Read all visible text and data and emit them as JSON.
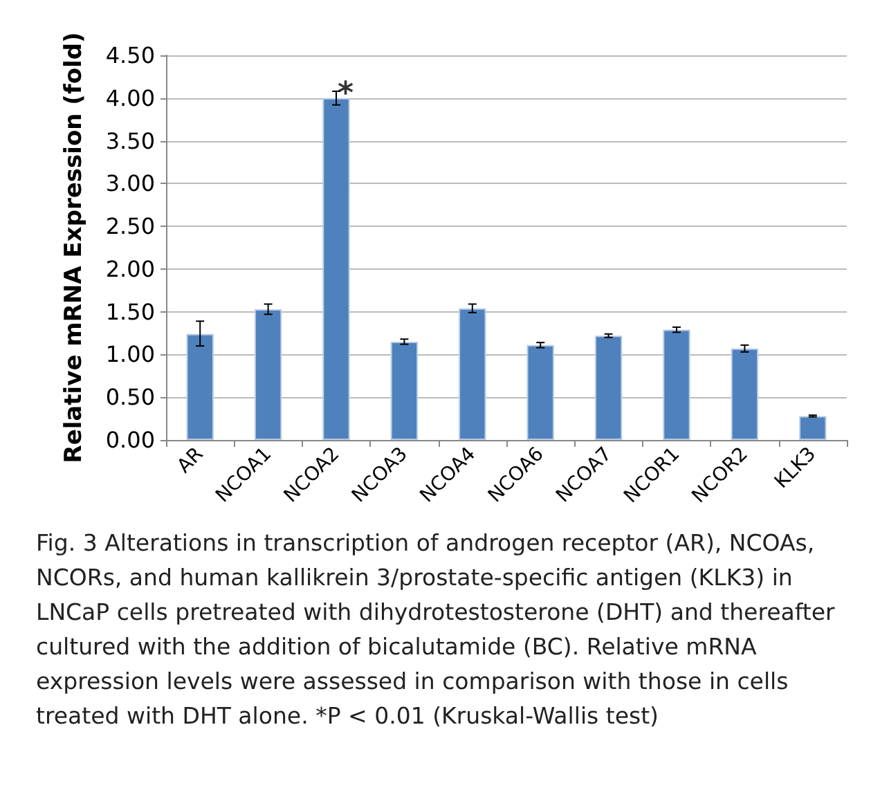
{
  "chart_data": {
    "type": "bar",
    "ylabel": "Relative mRNA Expression (fold)",
    "categories": [
      "AR",
      "NCOA1",
      "NCOA2",
      "NCOA3",
      "NCOA4",
      "NCOA6",
      "NCOA7",
      "NCOR1",
      "NCOR2",
      "KLK3"
    ],
    "values": [
      1.24,
      1.53,
      4.0,
      1.15,
      1.54,
      1.11,
      1.22,
      1.29,
      1.07,
      0.28
    ],
    "errors": [
      [
        1.1,
        1.39
      ],
      0.06,
      0.08,
      0.03,
      0.05,
      0.03,
      0.02,
      0.03,
      0.04,
      0.01
    ],
    "color": "#4f81bd",
    "ylim": [
      0,
      4.5
    ],
    "yticks": [
      {
        "value": 0,
        "label": "0.00"
      },
      {
        "value": 0.5,
        "label": "0.50"
      },
      {
        "value": 1,
        "label": "1.00"
      },
      {
        "value": 1.5,
        "label": "1.50"
      },
      {
        "value": 2,
        "label": "2.00"
      },
      {
        "value": 2.5,
        "label": "2.50"
      },
      {
        "value": 3,
        "label": "3.00"
      },
      {
        "value": 3.5,
        "label": "3.50"
      },
      {
        "value": 4,
        "label": "4.00"
      },
      {
        "value": 4.5,
        "label": "4.50"
      }
    ],
    "grid": "y",
    "annotations": [
      {
        "text": "*",
        "x": "NCOA2",
        "y": 4.08
      },
      "Fig. 3 Alterations in transcription of androgen receptor (AR), NCOAs, NCORs, and human kallikrein 3/prostate-specific antigen (KLK3) in LNCaP cells pretreated with dihydrotestosterone (DHT) and thereafter cultured with the addition of bicalutamide (BC). Relative mRNA expression levels were assessed in comparison with those in cells treated with DHT alone. *P < 0.01 (Kruskal-Wallis test)"
    ]
  }
}
